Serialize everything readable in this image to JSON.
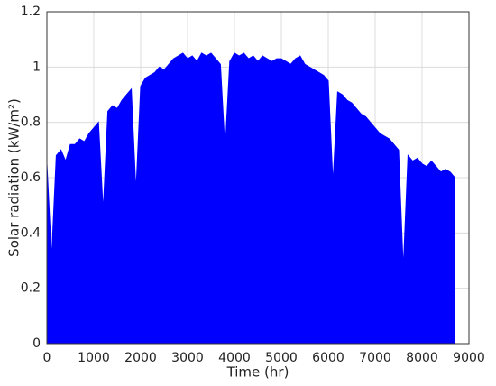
{
  "chart_data": {
    "type": "area",
    "x_label": "Time (hr)",
    "y_label": "Solar radiation (kW/m²)",
    "x": [
      0,
      100,
      200,
      300,
      400,
      500,
      600,
      700,
      800,
      900,
      1000,
      1100,
      1200,
      1300,
      1400,
      1500,
      1600,
      1700,
      1800,
      1900,
      2000,
      2100,
      2200,
      2300,
      2400,
      2500,
      2600,
      2700,
      2800,
      2900,
      3000,
      3100,
      3200,
      3300,
      3400,
      3500,
      3600,
      3700,
      3800,
      3900,
      4000,
      4100,
      4200,
      4300,
      4400,
      4500,
      4600,
      4700,
      4800,
      4900,
      5000,
      5100,
      5200,
      5300,
      5400,
      5500,
      5600,
      5700,
      5800,
      5900,
      6000,
      6100,
      6200,
      6300,
      6400,
      6500,
      6600,
      6700,
      6800,
      6900,
      7000,
      7100,
      7200,
      7300,
      7400,
      7500,
      7600,
      7700,
      7800,
      7900,
      8000,
      8100,
      8200,
      8300,
      8400,
      8500,
      8600,
      8700
    ],
    "values": [
      0.65,
      0.31,
      0.68,
      0.7,
      0.66,
      0.72,
      0.72,
      0.74,
      0.73,
      0.76,
      0.78,
      0.8,
      0.48,
      0.84,
      0.86,
      0.85,
      0.88,
      0.9,
      0.92,
      0.55,
      0.93,
      0.96,
      0.97,
      0.98,
      1.0,
      0.99,
      1.01,
      1.03,
      1.04,
      1.05,
      1.03,
      1.04,
      1.02,
      1.05,
      1.04,
      1.05,
      1.03,
      1.01,
      0.7,
      1.02,
      1.05,
      1.04,
      1.05,
      1.03,
      1.04,
      1.02,
      1.04,
      1.03,
      1.02,
      1.03,
      1.03,
      1.02,
      1.01,
      1.03,
      1.04,
      1.01,
      1.0,
      0.99,
      0.98,
      0.97,
      0.95,
      0.58,
      0.91,
      0.9,
      0.88,
      0.87,
      0.85,
      0.83,
      0.82,
      0.8,
      0.78,
      0.76,
      0.75,
      0.74,
      0.72,
      0.7,
      0.27,
      0.68,
      0.66,
      0.67,
      0.65,
      0.64,
      0.66,
      0.64,
      0.62,
      0.63,
      0.62,
      0.6
    ],
    "color": "#0000ff",
    "xlim": [
      0,
      9000
    ],
    "xticks": [
      0,
      1000,
      2000,
      3000,
      4000,
      5000,
      6000,
      7000,
      8000,
      9000
    ],
    "ylim": [
      0,
      1.2
    ],
    "yticks": [
      0,
      0.2,
      0.4,
      0.6,
      0.8,
      1,
      1.2
    ],
    "grid": true
  }
}
